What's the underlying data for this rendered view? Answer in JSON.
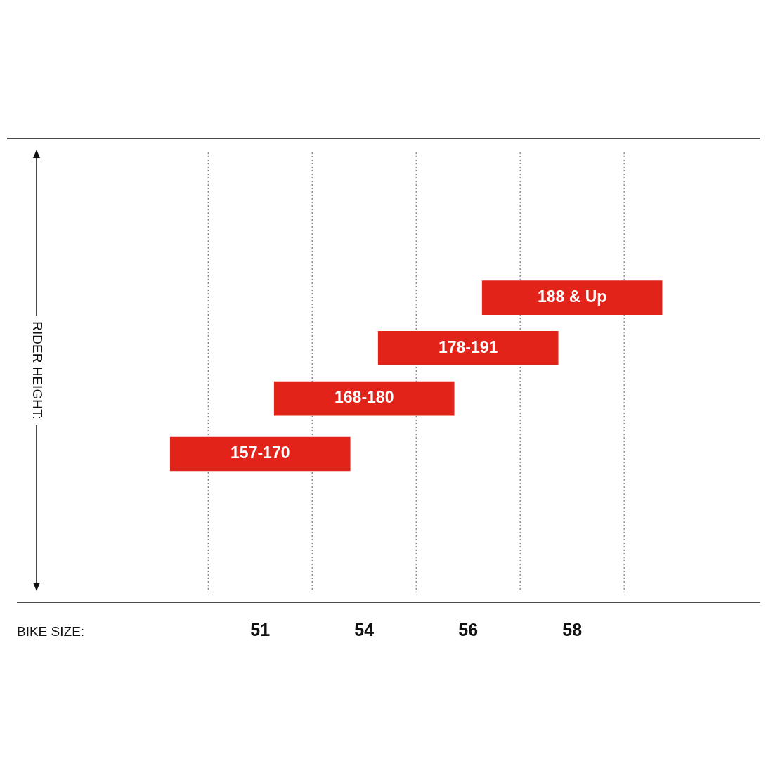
{
  "chart_data": {
    "type": "other",
    "categories": [
      "51",
      "54",
      "56",
      "58"
    ],
    "values": [
      157,
      168,
      178,
      188
    ],
    "value_labels": [
      "157-170",
      "168-180",
      "178-191",
      "188 & Up"
    ],
    "annotations": [
      "RIDER HEIGHT:",
      "BIKE SIZE:"
    ],
    "color": "#e2231a"
  }
}
